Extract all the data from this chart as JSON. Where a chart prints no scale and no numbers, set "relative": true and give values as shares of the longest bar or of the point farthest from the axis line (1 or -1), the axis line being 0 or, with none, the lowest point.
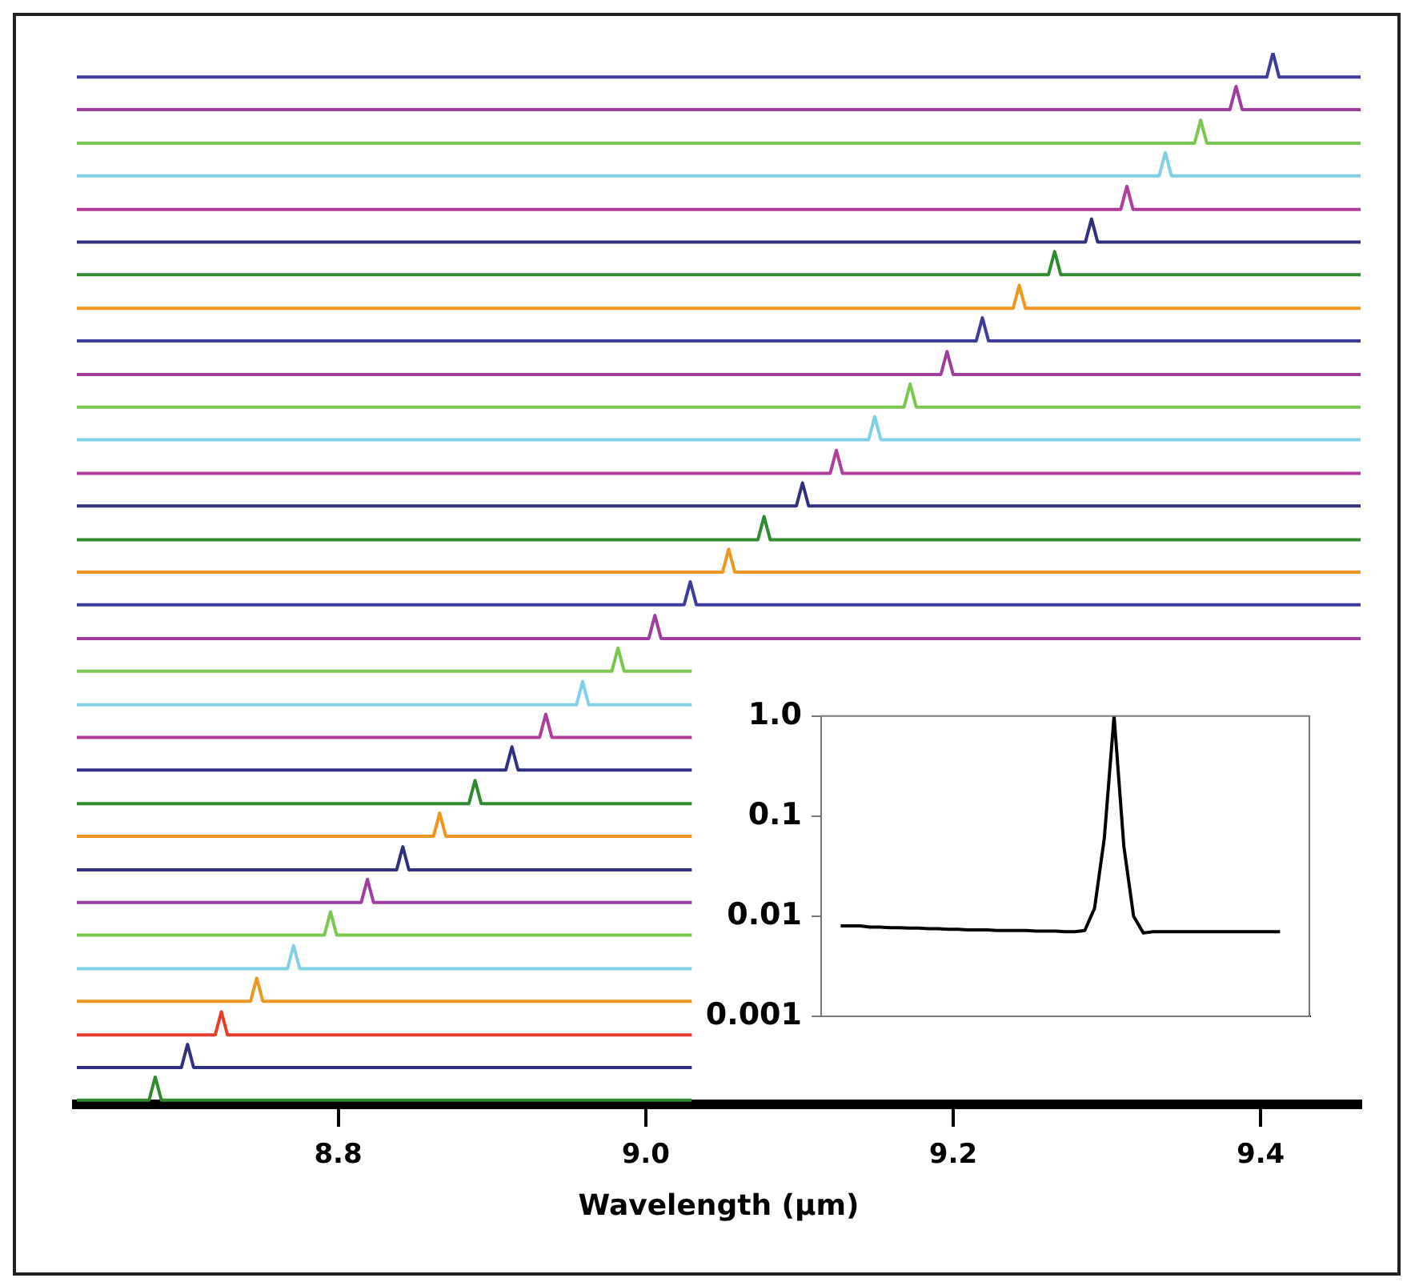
{
  "chart_data": [
    {
      "type": "line",
      "xlabel": "Wavelength (µm)",
      "relative": true,
      "xlim": [
        8.63,
        9.465
      ],
      "xticks": [
        8.8,
        {
          "value": 9,
          "label": "9.0"
        },
        9.2,
        9.4
      ],
      "tick_labels": "x",
      "series": [
        {
          "color": "#3c3c9c",
          "x": [
            8.63,
            9.404,
            9.408,
            9.412,
            9.465
          ],
          "values": [
            0.977,
            0.977,
            1,
            0.977,
            0.977
          ]
        },
        {
          "color": "#a03ca0",
          "x": [
            8.63,
            9.38,
            9.384,
            9.388,
            9.465
          ],
          "values": [
            0.946,
            0.946,
            0.968,
            0.946,
            0.946
          ]
        },
        {
          "color": "#78c850",
          "x": [
            8.63,
            9.357,
            9.361,
            9.365,
            9.465
          ],
          "values": [
            0.914,
            0.914,
            0.936,
            0.914,
            0.914
          ]
        },
        {
          "color": "#80d0e8",
          "x": [
            8.63,
            9.334,
            9.338,
            9.342,
            9.465
          ],
          "values": [
            0.883,
            0.883,
            0.905,
            0.883,
            0.883
          ]
        },
        {
          "color": "#b03c9c",
          "x": [
            8.63,
            9.309,
            9.313,
            9.317,
            9.465
          ],
          "values": [
            0.851,
            0.851,
            0.873,
            0.851,
            0.851
          ]
        },
        {
          "color": "#303080",
          "x": [
            8.63,
            9.286,
            9.29,
            9.294,
            9.465
          ],
          "values": [
            0.82,
            0.82,
            0.842,
            0.82,
            0.82
          ]
        },
        {
          "color": "#2e8b2e",
          "x": [
            8.63,
            9.262,
            9.266,
            9.27,
            9.465
          ],
          "values": [
            0.789,
            0.789,
            0.811,
            0.789,
            0.789
          ]
        },
        {
          "color": "#f0961e",
          "x": [
            8.63,
            9.239,
            9.243,
            9.247,
            9.465
          ],
          "values": [
            0.757,
            0.757,
            0.779,
            0.757,
            0.757
          ]
        },
        {
          "color": "#3c3c9c",
          "x": [
            8.63,
            9.215,
            9.219,
            9.223,
            9.465
          ],
          "values": [
            0.726,
            0.726,
            0.748,
            0.726,
            0.726
          ]
        },
        {
          "color": "#a03ca0",
          "x": [
            8.63,
            9.192,
            9.196,
            9.2,
            9.465
          ],
          "values": [
            0.694,
            0.694,
            0.716,
            0.694,
            0.694
          ]
        },
        {
          "color": "#78c850",
          "x": [
            8.63,
            9.168,
            9.172,
            9.176,
            9.465
          ],
          "values": [
            0.663,
            0.663,
            0.685,
            0.663,
            0.663
          ]
        },
        {
          "color": "#80d0e8",
          "x": [
            8.63,
            9.145,
            9.149,
            9.153,
            9.465
          ],
          "values": [
            0.632,
            0.632,
            0.654,
            0.632,
            0.632
          ]
        },
        {
          "color": "#b03c9c",
          "x": [
            8.63,
            9.12,
            9.124,
            9.128,
            9.465
          ],
          "values": [
            0.6,
            0.6,
            0.622,
            0.6,
            0.6
          ]
        },
        {
          "color": "#303080",
          "x": [
            8.63,
            9.098,
            9.102,
            9.106,
            9.465
          ],
          "values": [
            0.569,
            0.569,
            0.591,
            0.569,
            0.569
          ]
        },
        {
          "color": "#2e8b2e",
          "x": [
            8.63,
            9.073,
            9.077,
            9.081,
            9.465
          ],
          "values": [
            0.537,
            0.537,
            0.559,
            0.537,
            0.537
          ]
        },
        {
          "color": "#f0961e",
          "x": [
            8.63,
            9.05,
            9.054,
            9.058,
            9.465
          ],
          "values": [
            0.506,
            0.506,
            0.528,
            0.506,
            0.506
          ]
        },
        {
          "color": "#3c3c9c",
          "x": [
            8.63,
            9.025,
            9.029,
            9.033,
            9.465
          ],
          "values": [
            0.475,
            0.475,
            0.497,
            0.475,
            0.475
          ]
        },
        {
          "color": "#a03ca0",
          "x": [
            8.63,
            9.002,
            9.006,
            9.01,
            9.465
          ],
          "values": [
            0.443,
            0.443,
            0.465,
            0.443,
            0.443
          ]
        },
        {
          "color": "#78c850",
          "x": [
            8.63,
            8.978,
            8.982,
            8.986,
            9.03
          ],
          "values": [
            0.412,
            0.412,
            0.434,
            0.412,
            0.412
          ]
        },
        {
          "color": "#80d0e8",
          "x": [
            8.63,
            8.955,
            8.959,
            8.963,
            9.03
          ],
          "values": [
            0.38,
            0.38,
            0.402,
            0.38,
            0.38
          ]
        },
        {
          "color": "#b03c9c",
          "x": [
            8.63,
            8.931,
            8.935,
            8.939,
            9.03
          ],
          "values": [
            0.349,
            0.349,
            0.371,
            0.349,
            0.349
          ]
        },
        {
          "color": "#303080",
          "x": [
            8.63,
            8.909,
            8.913,
            8.917,
            9.03
          ],
          "values": [
            0.318,
            0.318,
            0.34,
            0.318,
            0.318
          ]
        },
        {
          "color": "#2e8b2e",
          "x": [
            8.63,
            8.885,
            8.889,
            8.893,
            9.03
          ],
          "values": [
            0.286,
            0.286,
            0.308,
            0.286,
            0.286
          ]
        },
        {
          "color": "#f0961e",
          "x": [
            8.63,
            8.862,
            8.866,
            8.87,
            9.03
          ],
          "values": [
            0.255,
            0.255,
            0.277,
            0.255,
            0.255
          ]
        },
        {
          "color": "#303080",
          "x": [
            8.63,
            8.838,
            8.842,
            8.846,
            9.03
          ],
          "values": [
            0.223,
            0.223,
            0.245,
            0.223,
            0.223
          ]
        },
        {
          "color": "#a03ca0",
          "x": [
            8.63,
            8.815,
            8.819,
            8.823,
            9.03
          ],
          "values": [
            0.192,
            0.192,
            0.214,
            0.192,
            0.192
          ]
        },
        {
          "color": "#78c850",
          "x": [
            8.63,
            8.791,
            8.795,
            8.799,
            9.03
          ],
          "values": [
            0.161,
            0.161,
            0.183,
            0.161,
            0.161
          ]
        },
        {
          "color": "#80d0e8",
          "x": [
            8.63,
            8.767,
            8.771,
            8.775,
            9.03
          ],
          "values": [
            0.129,
            0.129,
            0.151,
            0.129,
            0.129
          ]
        },
        {
          "color": "#f0961e",
          "x": [
            8.63,
            8.743,
            8.747,
            8.751,
            9.03
          ],
          "values": [
            0.098,
            0.098,
            0.12,
            0.098,
            0.098
          ]
        },
        {
          "color": "#e83c28",
          "x": [
            8.63,
            8.72,
            8.724,
            8.728,
            9.03
          ],
          "values": [
            0.066,
            0.066,
            0.088,
            0.066,
            0.066
          ]
        },
        {
          "color": "#303080",
          "x": [
            8.63,
            8.698,
            8.702,
            8.706,
            9.03
          ],
          "values": [
            0.035,
            0.035,
            0.057,
            0.035,
            0.035
          ]
        },
        {
          "color": "#2e8b2e",
          "x": [
            8.63,
            8.677,
            8.681,
            8.685,
            9.03
          ],
          "values": [
            0.004,
            0.004,
            0.026,
            0.004,
            0.004
          ]
        }
      ]
    },
    {
      "type": "line",
      "log": "y",
      "ylim": [
        0.001,
        1
      ],
      "yticks": [
        {
          "value": 1,
          "label": "1.0"
        },
        0.1,
        0.01,
        0.001
      ],
      "tick_labels": "y",
      "categories": [
        null,
        null,
        null,
        null,
        null,
        null,
        null,
        null,
        null,
        null,
        null,
        null,
        null,
        null,
        null,
        null,
        null,
        null,
        null,
        null,
        null,
        null,
        null,
        null,
        null,
        null,
        null,
        null,
        null,
        null,
        null,
        null,
        null,
        null,
        null,
        null,
        null,
        null,
        null,
        null,
        null,
        null,
        null,
        null,
        null,
        null,
        null,
        null,
        null,
        null,
        null
      ],
      "series": [
        {
          "color": "#000000",
          "values": [
            null,
            null,
            0.008,
            0.008,
            0.008,
            0.0078,
            0.0078,
            0.0077,
            0.0077,
            0.0076,
            0.0076,
            0.0075,
            0.0075,
            0.0074,
            0.0074,
            0.0073,
            0.0073,
            0.0073,
            0.0072,
            0.0072,
            0.0072,
            0.0072,
            0.0071,
            0.0071,
            0.0071,
            0.007,
            0.007,
            0.0072,
            0.012,
            0.06,
            1,
            0.05,
            0.01,
            0.0068,
            0.007,
            0.007,
            0.007,
            0.007,
            0.007,
            0.007,
            0.007,
            0.007,
            0.007,
            0.007,
            0.007,
            0.007,
            0.007,
            0.007,
            null,
            null,
            null
          ]
        }
      ]
    }
  ]
}
